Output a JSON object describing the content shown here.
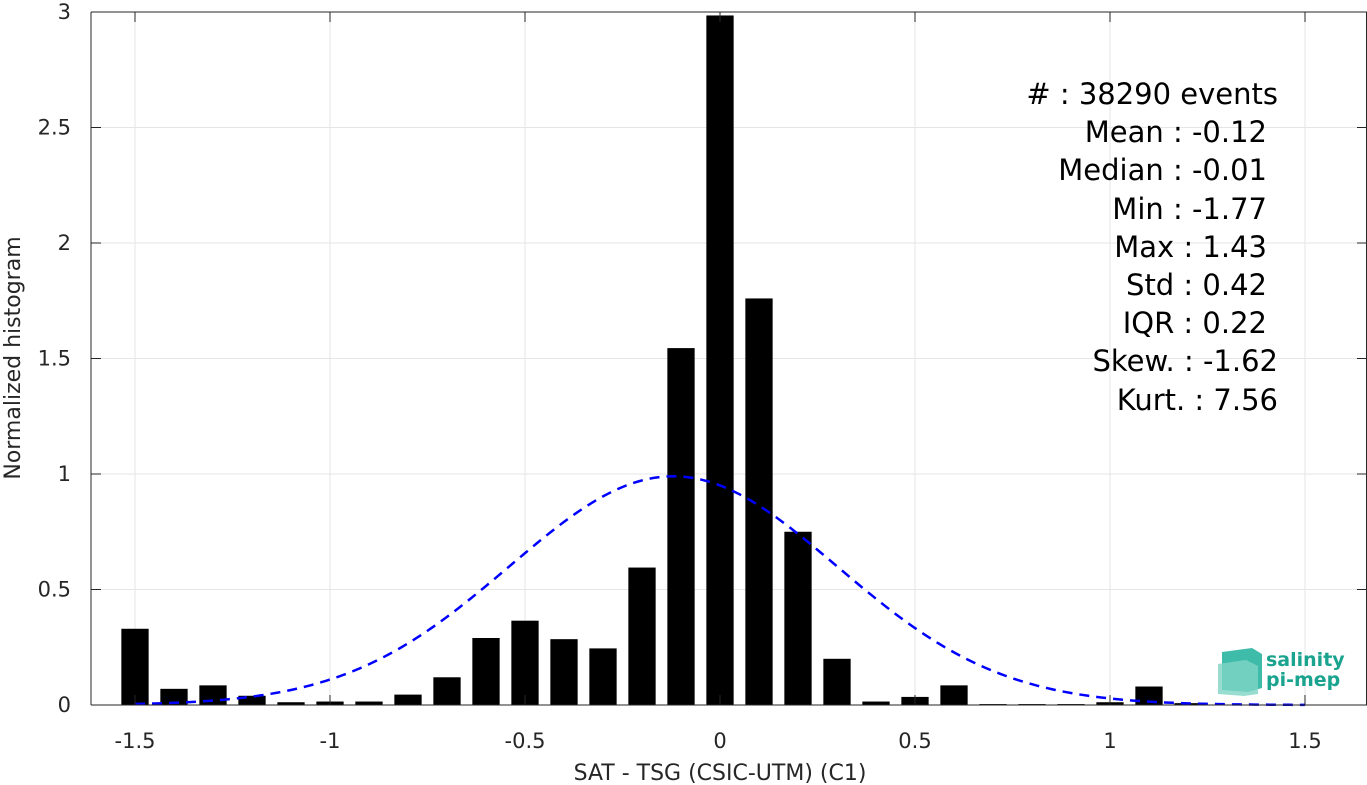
{
  "chart_data": {
    "type": "bar",
    "xlabel": "SAT - TSG (CSIC-UTM) (C1)",
    "ylabel": "Normalized histogram",
    "xlim": [
      -1.55,
      1.55
    ],
    "ylim": [
      0,
      3
    ],
    "x_ticks": [
      -1.5,
      -1,
      -0.5,
      0,
      0.5,
      1,
      1.5
    ],
    "x_tick_labels": [
      "-1.5",
      "-1",
      "-0.5",
      "0",
      "0.5",
      "1",
      "1.5"
    ],
    "y_ticks": [
      0,
      0.5,
      1,
      1.5,
      2,
      2.5,
      3
    ],
    "y_tick_labels": [
      "0",
      "0.5",
      "1",
      "1.5",
      "2",
      "2.5",
      "3"
    ],
    "grid": true,
    "bin_width": 0.1,
    "bars": {
      "x": [
        -1.5,
        -1.4,
        -1.3,
        -1.2,
        -1.1,
        -1.0,
        -0.9,
        -0.8,
        -0.7,
        -0.6,
        -0.5,
        -0.4,
        -0.3,
        -0.2,
        -0.1,
        0.0,
        0.1,
        0.2,
        0.3,
        0.4,
        0.5,
        0.6,
        0.7,
        0.8,
        0.9,
        1.0,
        1.1,
        1.2
      ],
      "values": [
        0.33,
        0.07,
        0.085,
        0.04,
        0.012,
        0.015,
        0.015,
        0.045,
        0.12,
        0.29,
        0.365,
        0.285,
        0.245,
        0.595,
        1.545,
        2.985,
        1.76,
        0.75,
        0.2,
        0.015,
        0.035,
        0.085,
        0.004,
        0.004,
        0.004,
        0.012,
        0.08,
        0.008
      ],
      "color": "#000000"
    },
    "fit_curve": {
      "type": "gaussian",
      "mean": -0.12,
      "std": 0.42,
      "peak": 0.99,
      "x_range": [
        -1.5,
        1.5
      ],
      "color": "#0000ff",
      "style": "dashed"
    },
    "stats_lines": [
      "#  : 38290 events",
      "Mean : -0.12",
      "Median : -0.01",
      "Min : -1.77",
      "Max : 1.43",
      "Std : 0.42",
      "IQR : 0.22",
      "Skew. : -1.62",
      "Kurt. : 7.56"
    ]
  },
  "logo": {
    "line1": "salinity",
    "line2": "pi-mep",
    "color": "#1aa38f"
  }
}
